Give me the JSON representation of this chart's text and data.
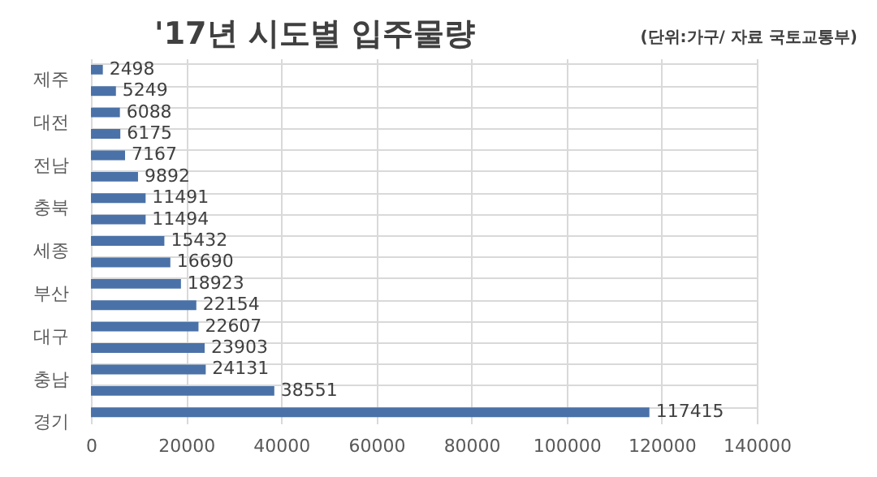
{
  "chart_data": {
    "type": "bar",
    "orientation": "horizontal",
    "title": "'17년 시도별 입주물량",
    "annotations": [
      "(단위:가구/ 자료 국토교통부)"
    ],
    "categories": [
      "제주",
      null,
      "대전",
      null,
      "전남",
      null,
      "충북",
      null,
      "세종",
      null,
      "부산",
      null,
      "대구",
      null,
      "충남",
      null,
      "경기"
    ],
    "values": [
      2498,
      5249,
      6088,
      6175,
      7167,
      9892,
      11491,
      11494,
      15432,
      16690,
      18923,
      22154,
      22607,
      23903,
      24131,
      38551,
      117415
    ],
    "color": "#4a72a8",
    "xlim": [
      0,
      140000
    ],
    "xticks": [
      0,
      20000,
      40000,
      60000,
      80000,
      100000,
      120000,
      140000
    ],
    "grid": true,
    "data_labels": true
  }
}
